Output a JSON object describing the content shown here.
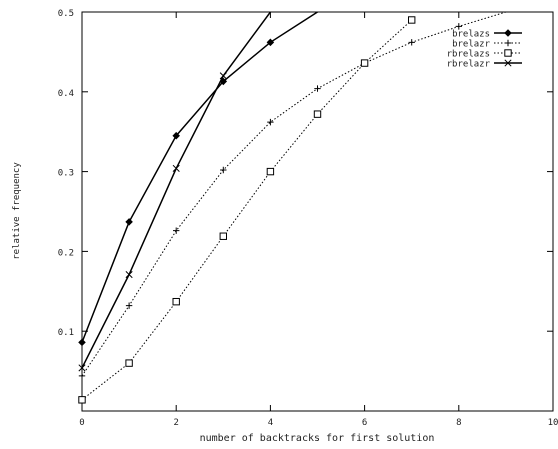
{
  "chart_data": {
    "type": "line",
    "title": "",
    "xlabel": "number of backtracks for first solution",
    "ylabel": "relative frequency",
    "xlim": [
      0,
      10
    ],
    "ylim": [
      0,
      0.5
    ],
    "xticks": [
      0,
      2,
      4,
      6,
      8,
      10
    ],
    "xtick_labels": [
      "0",
      "2",
      "4",
      "6",
      "8",
      "10"
    ],
    "yticks": [
      0.1,
      0.2,
      0.3,
      0.4,
      0.5
    ],
    "ytick_labels": [
      "0.1",
      "0.2",
      "0.3",
      "0.4",
      "0.5"
    ],
    "grid": false,
    "legend_position": "top-right",
    "series": [
      {
        "name": "brelazs",
        "marker": "filled-diamond",
        "line_style": "solid",
        "x": [
          0,
          1,
          2,
          3,
          4,
          5
        ],
        "y": [
          0.086,
          0.237,
          0.345,
          0.413,
          0.462,
          0.5
        ]
      },
      {
        "name": "brelazr",
        "marker": "plus",
        "line_style": "dotted",
        "x": [
          0,
          1,
          2,
          3,
          4,
          5,
          6,
          7,
          8,
          9
        ],
        "y": [
          0.044,
          0.132,
          0.226,
          0.302,
          0.362,
          0.404,
          0.436,
          0.462,
          0.482,
          0.5
        ]
      },
      {
        "name": "rbrelazs",
        "marker": "open-square",
        "line_style": "dotted",
        "x": [
          0,
          1,
          2,
          3,
          4,
          5,
          6,
          7
        ],
        "y": [
          0.014,
          0.06,
          0.137,
          0.219,
          0.3,
          0.372,
          0.436,
          0.49
        ]
      },
      {
        "name": "rbrelazr",
        "marker": "cross",
        "line_style": "solid",
        "x": [
          0,
          1,
          2,
          3,
          4
        ],
        "y": [
          0.054,
          0.171,
          0.304,
          0.42,
          0.5
        ]
      }
    ]
  }
}
